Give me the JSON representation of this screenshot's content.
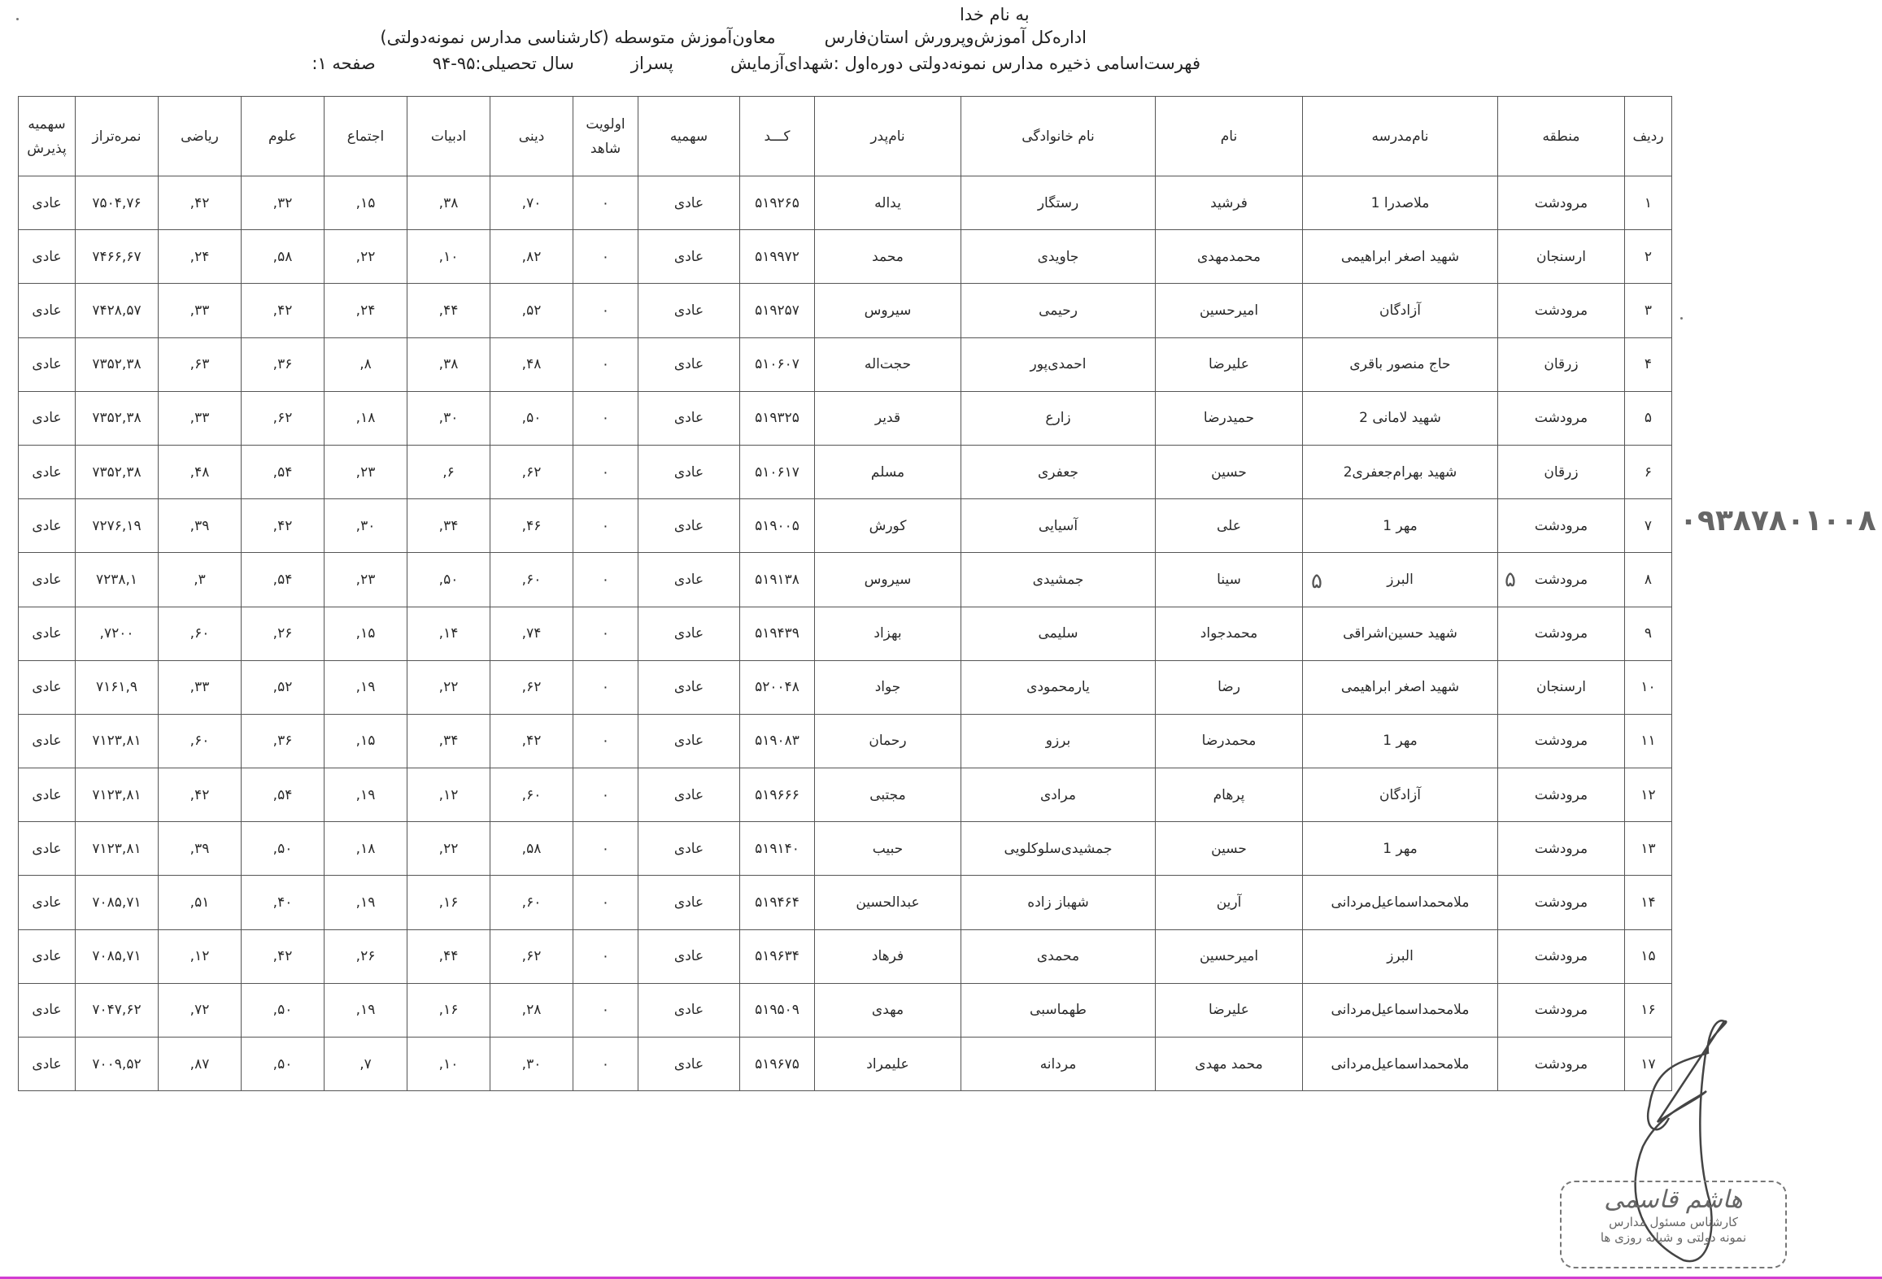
{
  "header": {
    "basmala": "به نام خدا",
    "org": "اداره‌کل آموزش‌وپرورش استان‌فارس",
    "dept": "معاون‌آموزش متوسطه (کارشناسی مدارس نمونه‌دولتی)",
    "list_title": "فهرست‌اسامی ذخیره مدارس نمونه‌دولتی دوره‌اول :شهدای‌آزمایش",
    "gender": "پسراز",
    "school_year": "سال تحصیلی:۹۵-۹۴",
    "page": "صفحه ۱:"
  },
  "table": {
    "columns": [
      "ردیف",
      "منطقه",
      "نام‌مدرسه",
      "نام",
      "نام خانوادگی",
      "نام‌پدر",
      "کـــد",
      "سهمیه",
      [
        "اولویت",
        "شاهد"
      ],
      "دینی",
      "ادبیات",
      "اجتماع",
      "علوم",
      "ریاضی",
      "نمره‌تراز",
      [
        "سهمیه",
        "پذیرش"
      ]
    ],
    "rows": [
      [
        "۱",
        "مرودشت",
        "ملاصدرا 1",
        "فرشید",
        "رستگار",
        "یداله",
        "۵۱۹۲۶۵",
        "عادی",
        "۰",
        "۷۰,",
        "۳۸,",
        "۱۵,",
        "۳۲,",
        "۴۲,",
        "۷۵۰۴,۷۶",
        "عادی"
      ],
      [
        "۲",
        "ارسنجان",
        "شهید اصغر ابراهیمی",
        "محمدمهدی",
        "جاویدی",
        "محمد",
        "۵۱۹۹۷۲",
        "عادی",
        "۰",
        "۸۲,",
        "۱۰,",
        "۲۲,",
        "۵۸,",
        "۲۴,",
        "۷۴۶۶,۶۷",
        "عادی"
      ],
      [
        "۳",
        "مرودشت",
        "آزادگان",
        "امیرحسین",
        "رحیمی",
        "سیروس",
        "۵۱۹۲۵۷",
        "عادی",
        "۰",
        "۵۲,",
        "۴۴,",
        "۲۴,",
        "۴۲,",
        "۳۳,",
        "۷۴۲۸,۵۷",
        "عادی"
      ],
      [
        "۴",
        "زرقان",
        "حاج منصور باقری",
        "علیرضا",
        "احمدی‌پور",
        "حجت‌اله",
        "۵۱۰۶۰۷",
        "عادی",
        "۰",
        "۴۸,",
        "۳۸,",
        "۸,",
        "۳۶,",
        "۶۳,",
        "۷۳۵۲,۳۸",
        "عادی"
      ],
      [
        "۵",
        "مرودشت",
        "شهید لامانی 2",
        "حمیدرضا",
        "زارع",
        "قدیر",
        "۵۱۹۳۲۵",
        "عادی",
        "۰",
        "۵۰,",
        "۳۰,",
        "۱۸,",
        "۶۲,",
        "۳۳,",
        "۷۳۵۲,۳۸",
        "عادی"
      ],
      [
        "۶",
        "زرقان",
        "شهید بهرام‌جعفری2",
        "حسین",
        "جعفری",
        "مسلم",
        "۵۱۰۶۱۷",
        "عادی",
        "۰",
        "۶۲,",
        "۶,",
        "۲۳,",
        "۵۴,",
        "۴۸,",
        "۷۳۵۲,۳۸",
        "عادی"
      ],
      [
        "۷",
        "مرودشت",
        "مهر 1",
        "علی",
        "آسیایی",
        "کورش",
        "۵۱۹۰۰۵",
        "عادی",
        "۰",
        "۴۶,",
        "۳۴,",
        "۳۰,",
        "۴۲,",
        "۳۹,",
        "۷۲۷۶,۱۹",
        "عادی"
      ],
      [
        "۸",
        "مرودشت",
        "البرز",
        "سینا",
        "جمشیدی",
        "سیروس",
        "۵۱۹۱۳۸",
        "عادی",
        "۰",
        "۶۰,",
        "۵۰,",
        "۲۳,",
        "۵۴,",
        "۳,",
        "۷۲۳۸,۱",
        "عادی"
      ],
      [
        "۹",
        "مرودشت",
        "شهید حسین‌اشراقی",
        "محمدجواد",
        "سلیمی",
        "بهزاد",
        "۵۱۹۴۳۹",
        "عادی",
        "۰",
        "۷۴,",
        "۱۴,",
        "۱۵,",
        "۲۶,",
        "۶۰,",
        "۷۲۰۰,",
        "عادی"
      ],
      [
        "۱۰",
        "ارسنجان",
        "شهید اصغر ابراهیمی",
        "رضا",
        "یارمحمودی",
        "جواد",
        "۵۲۰۰۴۸",
        "عادی",
        "۰",
        "۶۲,",
        "۲۲,",
        "۱۹,",
        "۵۲,",
        "۳۳,",
        "۷۱۶۱,۹",
        "عادی"
      ],
      [
        "۱۱",
        "مرودشت",
        "مهر 1",
        "محمدرضا",
        "برزو",
        "رحمان",
        "۵۱۹۰۸۳",
        "عادی",
        "۰",
        "۴۲,",
        "۳۴,",
        "۱۵,",
        "۳۶,",
        "۶۰,",
        "۷۱۲۳,۸۱",
        "عادی"
      ],
      [
        "۱۲",
        "مرودشت",
        "آزادگان",
        "پرهام",
        "مرادی",
        "مجتبی",
        "۵۱۹۶۶۶",
        "عادی",
        "۰",
        "۶۰,",
        "۱۲,",
        "۱۹,",
        "۵۴,",
        "۴۲,",
        "۷۱۲۳,۸۱",
        "عادی"
      ],
      [
        "۱۳",
        "مرودشت",
        "مهر 1",
        "حسین",
        "جمشیدی‌سلوکلویی",
        "حبیب",
        "۵۱۹۱۴۰",
        "عادی",
        "۰",
        "۵۸,",
        "۲۲,",
        "۱۸,",
        "۵۰,",
        "۳۹,",
        "۷۱۲۳,۸۱",
        "عادی"
      ],
      [
        "۱۴",
        "مرودشت",
        "ملامحمداسماعیل‌مردانی",
        "آرین",
        "شهباز زاده",
        "عبدالحسین",
        "۵۱۹۴۶۴",
        "عادی",
        "۰",
        "۶۰,",
        "۱۶,",
        "۱۹,",
        "۴۰,",
        "۵۱,",
        "۷۰۸۵,۷۱",
        "عادی"
      ],
      [
        "۱۵",
        "مرودشت",
        "البرز",
        "امیرحسین",
        "محمدی",
        "فرهاد",
        "۵۱۹۶۳۴",
        "عادی",
        "۰",
        "۶۲,",
        "۴۴,",
        "۲۶,",
        "۴۲,",
        "۱۲,",
        "۷۰۸۵,۷۱",
        "عادی"
      ],
      [
        "۱۶",
        "مرودشت",
        "ملامحمداسماعیل‌مردانی",
        "علیرضا",
        "طهماسبی",
        "مهدی",
        "۵۱۹۵۰۹",
        "عادی",
        "۰",
        "۲۸,",
        "۱۶,",
        "۱۹,",
        "۵۰,",
        "۷۲,",
        "۷۰۴۷,۶۲",
        "عادی"
      ],
      [
        "۱۷",
        "مرودشت",
        "ملامحمداسماعیل‌مردانی",
        "محمد مهدی",
        "مردانه",
        "علیمراد",
        "۵۱۹۶۷۵",
        "عادی",
        "۰",
        "۳۰,",
        "۱۰,",
        "۷,",
        "۵۰,",
        "۸۷,",
        "۷۰۰۹,۵۲",
        "عادی"
      ]
    ]
  },
  "annotations": {
    "handwritten_phone": "۰۹۳۸۷۸۰۱۰۰۸",
    "handwritten_mark": "۵"
  },
  "stamp": {
    "name": "هاشم قاسمی",
    "line1": "کارشناس مسئول مدارس",
    "line2": "نمونه دولتی و شبانه روزی ها"
  },
  "colors": {
    "ink": "#2a2a2a",
    "grid": "#555555",
    "scan_edge": "#d23cd2"
  }
}
